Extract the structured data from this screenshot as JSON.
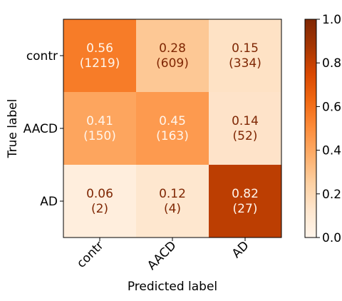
{
  "chart_data": {
    "type": "heatmap",
    "title": "",
    "xlabel": "Predicted label",
    "ylabel": "True label",
    "x_categories": [
      "contr",
      "AACD",
      "AD"
    ],
    "y_categories": [
      "contr",
      "AACD",
      "AD"
    ],
    "values": [
      [
        0.56,
        0.28,
        0.15
      ],
      [
        0.41,
        0.45,
        0.14
      ],
      [
        0.06,
        0.12,
        0.82
      ]
    ],
    "counts": [
      [
        1219,
        609,
        334
      ],
      [
        150,
        163,
        52
      ],
      [
        2,
        4,
        27
      ]
    ],
    "value_labels": [
      [
        "0.56",
        "0.28",
        "0.15"
      ],
      [
        "0.41",
        "0.45",
        "0.14"
      ],
      [
        "0.06",
        "0.12",
        "0.82"
      ]
    ],
    "count_labels": [
      [
        "(1219)",
        "(609)",
        "(334)"
      ],
      [
        "(150)",
        "(163)",
        "(52)"
      ],
      [
        "(2)",
        "(4)",
        "(27)"
      ]
    ],
    "colorbar": {
      "range": [
        0.0,
        1.0
      ],
      "ticks": [
        0.0,
        0.2,
        0.4,
        0.6,
        0.8,
        1.0
      ],
      "tick_labels": [
        "0.0",
        "0.2",
        "0.4",
        "0.6",
        "0.8",
        "1.0"
      ]
    },
    "colormap": "Oranges",
    "colors": {
      "low": "#fff5eb",
      "high": "#7f2704",
      "text_dark": "#7f2704",
      "text_light": "#fff5eb"
    }
  }
}
